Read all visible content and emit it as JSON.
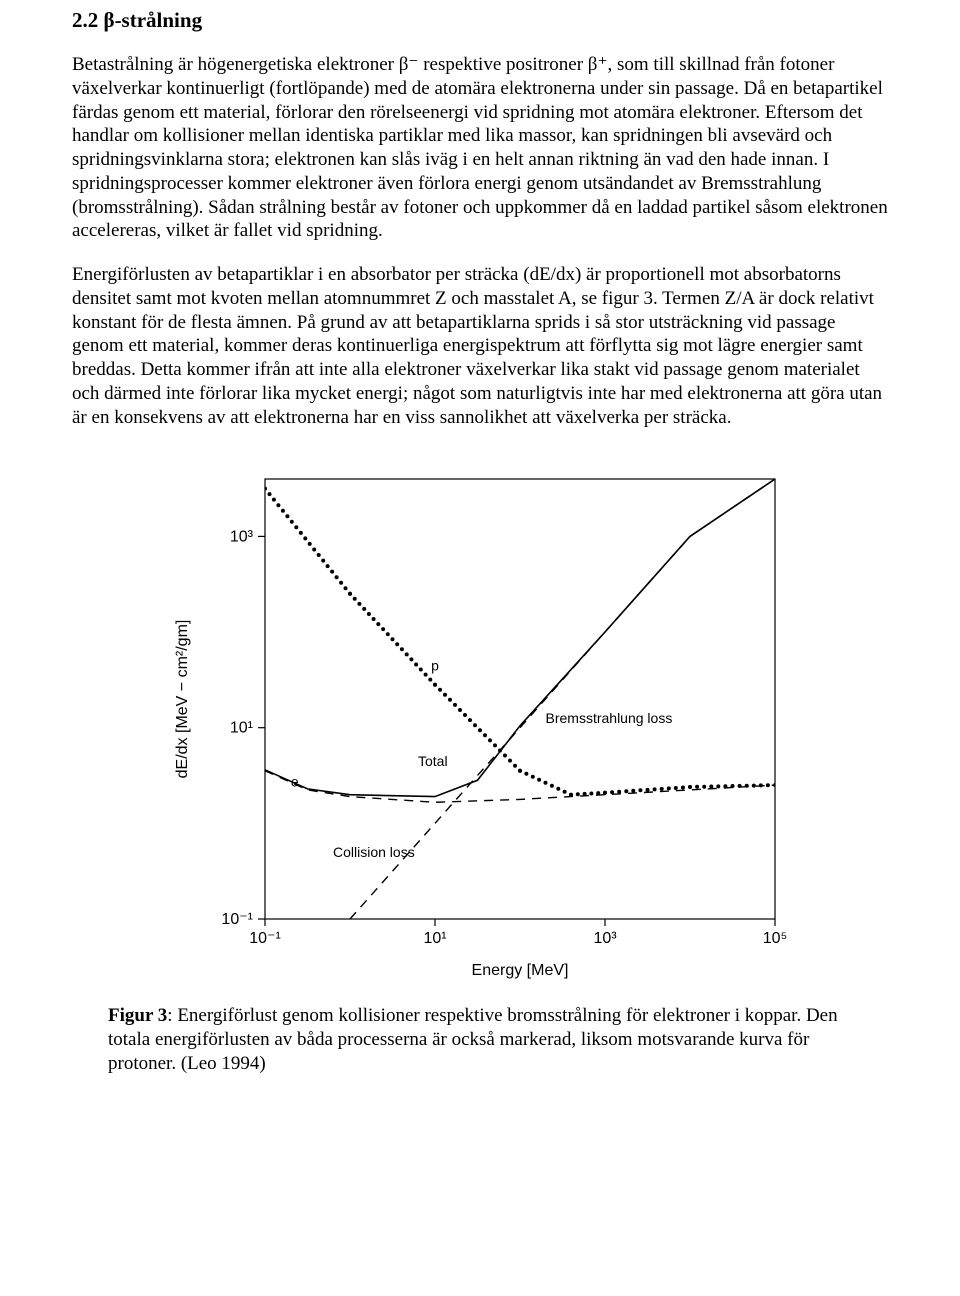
{
  "heading": "2.2 β-strålning",
  "para1": "Betastrålning är högenergetiska elektroner β⁻ respektive positroner β⁺, som till skillnad från fotoner växelverkar kontinuerligt (fortlöpande) med de atomära elektronerna under sin passage. Då en betapartikel färdas genom ett material, förlorar den rörelseenergi vid spridning mot atomära elektroner. Eftersom det handlar om kollisioner mellan identiska partiklar med lika massor, kan spridningen bli avsevärd och spridningsvinklarna stora; elektronen kan slås iväg i en helt annan riktning än vad den hade innan. I spridningsprocesser kommer elektroner även förlora energi genom utsändandet av Bremsstrahlung (bromsstrålning). Sådan strålning består av fotoner och uppkommer då en laddad partikel såsom elektronen accelereras, vilket är fallet vid spridning.",
  "para2": "Energiförlusten av betapartiklar i en absorbator per sträcka (dE/dx) är proportionell mot absorbatorns densitet samt mot kvoten mellan atomnummret Z och masstalet A, se figur 3. Termen Z/A är dock relativt konstant för de flesta ämnen. På grund av att betapartiklarna sprids i så stor utsträckning vid passage genom ett material, kommer deras kontinuerliga energispektrum att förflytta sig mot lägre energier samt breddas. Detta kommer ifrån att inte alla elektroner växelverkar lika stakt vid passage genom materialet och därmed inte förlorar lika mycket energi; något som naturligtvis inte har med elektronerna att göra utan är en konsekvens av att elektronerna har en viss sannolikhet att växelverka per sträcka.",
  "caption": "Figur 3: Energiförlust genom kollisioner respektive bromsstrålning för elektroner i koppar. Den totala energiförlusten av båda processerna är också markerad, liksom motsvarande kurva för protoner. (Leo 1994)",
  "chart": {
    "type": "line-loglog",
    "xlabel": "Energy  [MeV]",
    "ylabel": "dE/dx  [MeV − cm²/gm]",
    "x_tick_labels": [
      "10⁻¹",
      "10¹",
      "10³",
      "10⁵"
    ],
    "y_tick_labels": [
      "10⁻¹",
      "10¹",
      "10³"
    ],
    "x_exp_range": [
      -1,
      5
    ],
    "y_exp_range": [
      -1,
      3.6
    ],
    "colors": {
      "axis": "#000000",
      "background": "#ffffff",
      "text": "#000000"
    },
    "axis_fontsize": 16,
    "tick_fontsize": 16,
    "label_fontsize": 14,
    "series": [
      {
        "name": "proton",
        "label": "p",
        "style": "dotted-heavy",
        "color": "#000000",
        "points_exp": [
          [
            -1,
            3.5
          ],
          [
            0,
            2.4
          ],
          [
            1,
            1.45
          ],
          [
            2,
            0.55
          ],
          [
            2.6,
            0.3
          ],
          [
            3,
            0.32
          ],
          [
            4,
            0.38
          ],
          [
            5,
            0.4
          ]
        ]
      },
      {
        "name": "collision-loss-e",
        "label": "Collision loss",
        "label_pre": "e",
        "style": "dashed",
        "color": "#000000",
        "points_exp": [
          [
            -1,
            0.55
          ],
          [
            -0.5,
            0.35
          ],
          [
            0,
            0.28
          ],
          [
            1,
            0.22
          ],
          [
            2,
            0.25
          ],
          [
            3,
            0.3
          ],
          [
            4,
            0.35
          ],
          [
            5,
            0.4
          ]
        ]
      },
      {
        "name": "bremsstrahlung-loss",
        "label": "Bremsstrahlung loss",
        "style": "dashed",
        "color": "#000000",
        "points_exp": [
          [
            0,
            -1.0
          ],
          [
            1,
            0.0
          ],
          [
            2,
            1.0
          ],
          [
            3,
            2.0
          ],
          [
            4,
            3.0
          ],
          [
            5,
            3.6
          ]
        ]
      },
      {
        "name": "total",
        "label": "Total",
        "style": "solid",
        "color": "#000000",
        "points_exp": [
          [
            -1,
            0.56
          ],
          [
            -0.5,
            0.36
          ],
          [
            0,
            0.3
          ],
          [
            1,
            0.28
          ],
          [
            1.5,
            0.45
          ],
          [
            2,
            1.02
          ],
          [
            3,
            2.0
          ],
          [
            4,
            3.0
          ],
          [
            5,
            3.6
          ]
        ]
      }
    ]
  }
}
